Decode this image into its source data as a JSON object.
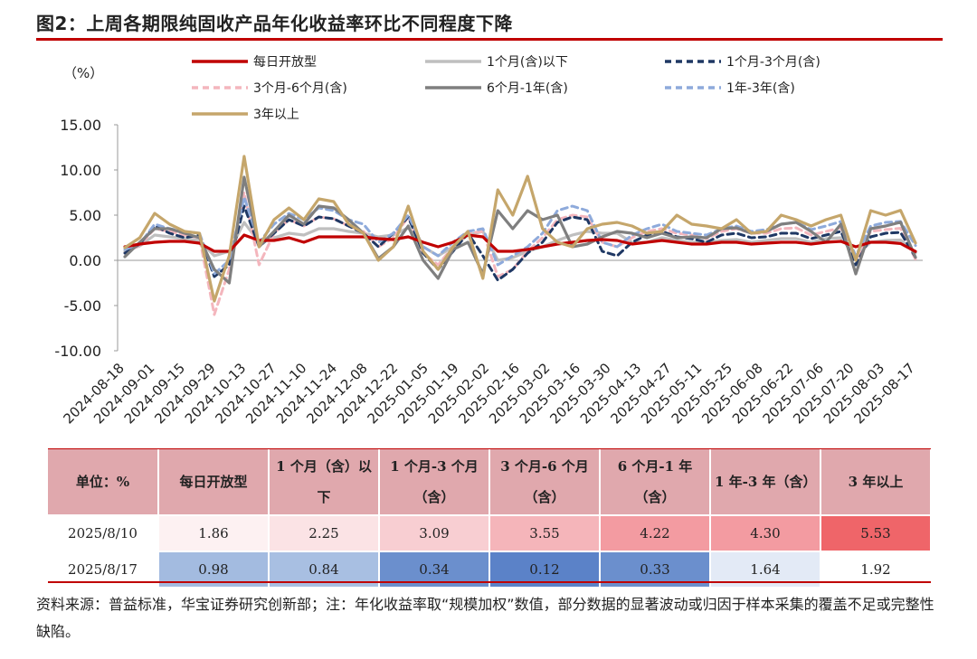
{
  "title": "图2：上周各期限纯固收产品年化收益率环比不同程度下降",
  "chart_data": {
    "type": "line",
    "ylabel": "（%）",
    "ylim": [
      -10,
      15
    ],
    "yticks": [
      "15.00",
      "10.00",
      "5.00",
      "0.00",
      "-5.00",
      "-10.00"
    ],
    "ytick_values": [
      15,
      10,
      5,
      0,
      -5,
      -10
    ],
    "xtick_labels": [
      "2024-08-18",
      "2024-09-01",
      "2024-09-15",
      "2024-09-29",
      "2024-10-13",
      "2024-10-27",
      "2024-11-10",
      "2024-11-24",
      "2024-12-08",
      "2024-12-22",
      "2025-01-05",
      "2025-01-19",
      "2025-02-02",
      "2025-02-16",
      "2025-03-02",
      "2025-03-16",
      "2025-03-30",
      "2025-04-13",
      "2025-04-27",
      "2025-05-11",
      "2025-05-25",
      "2025-06-08",
      "2025-06-22",
      "2025-07-06",
      "2025-07-20",
      "2025-08-03",
      "2025-08-17"
    ],
    "legend_position": "top",
    "series": [
      {
        "name": "每日开放型",
        "color": "#c00000",
        "dash": "solid",
        "values": [
          1.5,
          1.8,
          2.0,
          2.1,
          2.1,
          1.9,
          1.0,
          1.0,
          2.8,
          2.2,
          2.2,
          2.5,
          2.0,
          2.6,
          2.6,
          2.6,
          2.6,
          2.4,
          2.3,
          2.6,
          2.0,
          1.5,
          2.0,
          2.8,
          2.6,
          1.0,
          1.0,
          1.2,
          1.5,
          1.8,
          2.0,
          2.2,
          2.3,
          2.2,
          1.8,
          2.0,
          2.2,
          2.0,
          1.8,
          1.8,
          2.0,
          2.0,
          1.8,
          1.9,
          2.0,
          2.0,
          1.8,
          2.0,
          2.1,
          1.5,
          2.0,
          2.0,
          1.86,
          0.98
        ]
      },
      {
        "name": "1个月(含)以下",
        "color": "#bfbfbf",
        "dash": "solid",
        "values": [
          1.0,
          1.6,
          2.8,
          2.6,
          2.4,
          2.2,
          0.5,
          1.0,
          4.2,
          2.0,
          2.5,
          3.0,
          2.8,
          3.5,
          3.5,
          3.2,
          3.0,
          2.6,
          2.8,
          3.6,
          1.5,
          0.5,
          1.5,
          2.8,
          3.2,
          0.0,
          0.3,
          1.0,
          1.5,
          2.2,
          2.8,
          3.2,
          3.0,
          3.0,
          2.0,
          2.0,
          2.5,
          2.2,
          2.0,
          2.0,
          2.2,
          2.3,
          2.0,
          2.2,
          2.4,
          2.4,
          2.0,
          2.4,
          2.5,
          0.5,
          2.0,
          2.2,
          2.25,
          0.84
        ]
      },
      {
        "name": "1个月-3个月(含)",
        "color": "#1f3864",
        "dash": "7,5",
        "values": [
          0.8,
          1.8,
          3.8,
          3.0,
          2.5,
          2.8,
          -1.8,
          -0.5,
          6.0,
          1.5,
          3.0,
          4.5,
          3.8,
          4.8,
          4.6,
          3.8,
          3.0,
          1.5,
          3.0,
          4.8,
          0.8,
          -1.0,
          1.0,
          3.0,
          0.5,
          -2.2,
          -1.0,
          0.8,
          2.0,
          4.2,
          4.8,
          4.5,
          1.0,
          0.5,
          2.0,
          2.8,
          3.2,
          2.6,
          2.4,
          2.0,
          2.8,
          3.0,
          2.5,
          2.6,
          3.0,
          3.0,
          2.4,
          2.8,
          3.2,
          -0.5,
          2.6,
          3.0,
          3.09,
          0.34
        ]
      },
      {
        "name": "3个月-6个月(含)",
        "color": "#f4b6bd",
        "dash": "7,5",
        "values": [
          0.8,
          1.7,
          3.5,
          3.2,
          2.8,
          2.5,
          -6.0,
          -1.0,
          7.5,
          -0.5,
          3.0,
          4.5,
          3.8,
          4.8,
          4.6,
          3.8,
          3.2,
          1.5,
          2.5,
          4.8,
          0.8,
          -0.5,
          1.5,
          3.0,
          3.2,
          -1.8,
          -1.0,
          1.0,
          2.5,
          4.5,
          5.0,
          4.8,
          2.0,
          1.5,
          2.5,
          3.2,
          3.5,
          3.0,
          2.8,
          2.4,
          3.2,
          3.5,
          3.0,
          3.0,
          3.5,
          3.6,
          2.8,
          3.2,
          3.6,
          0.0,
          3.2,
          3.4,
          3.55,
          0.12
        ]
      },
      {
        "name": "6个月-1年(含)",
        "color": "#7f7f7f",
        "dash": "solid",
        "values": [
          0.4,
          2.0,
          3.5,
          3.5,
          3.0,
          2.5,
          -1.0,
          -2.5,
          9.2,
          1.5,
          3.2,
          5.0,
          4.0,
          6.0,
          5.8,
          4.5,
          3.0,
          0.2,
          1.5,
          3.8,
          0.0,
          -2.0,
          1.2,
          2.0,
          -1.5,
          5.5,
          3.5,
          5.5,
          4.5,
          5.0,
          1.5,
          1.8,
          2.6,
          3.2,
          3.0,
          2.5,
          3.0,
          2.5,
          2.6,
          2.5,
          3.5,
          3.6,
          3.0,
          3.2,
          4.0,
          4.2,
          3.2,
          2.0,
          4.0,
          -1.5,
          3.5,
          3.8,
          4.22,
          0.33
        ]
      },
      {
        "name": "1年-3年(含)",
        "color": "#8eaadb",
        "dash": "7,5",
        "values": [
          1.2,
          1.8,
          4.0,
          3.5,
          3.2,
          3.0,
          -1.5,
          0.0,
          7.0,
          2.0,
          4.0,
          5.2,
          4.5,
          5.8,
          5.5,
          4.5,
          4.0,
          2.0,
          3.0,
          5.0,
          1.5,
          0.5,
          2.0,
          3.2,
          3.5,
          -0.5,
          0.5,
          1.5,
          3.0,
          5.5,
          6.0,
          5.5,
          2.0,
          1.5,
          2.8,
          3.5,
          4.0,
          3.2,
          3.0,
          2.8,
          3.5,
          3.8,
          3.2,
          3.4,
          4.0,
          4.2,
          3.4,
          3.8,
          4.3,
          0.5,
          3.8,
          4.2,
          4.3,
          1.64
        ]
      },
      {
        "name": "3年以上",
        "color": "#c5a66b",
        "dash": "solid",
        "values": [
          1.4,
          2.5,
          5.2,
          4.0,
          3.2,
          3.0,
          -4.5,
          0.5,
          11.5,
          1.5,
          4.5,
          5.8,
          4.5,
          6.8,
          6.5,
          4.0,
          3.0,
          0.0,
          1.5,
          6.0,
          1.0,
          -1.0,
          1.5,
          3.2,
          -2.0,
          7.8,
          5.0,
          9.3,
          3.5,
          2.0,
          1.5,
          3.5,
          4.0,
          4.2,
          3.8,
          3.0,
          3.2,
          5.0,
          4.0,
          3.8,
          3.5,
          4.5,
          3.0,
          3.2,
          5.0,
          4.5,
          3.8,
          4.5,
          5.0,
          0.0,
          5.5,
          5.0,
          5.53,
          1.92
        ]
      }
    ]
  },
  "table": {
    "header": [
      "单位：%",
      "每日开放型",
      "1 个月（含）以下",
      "1 个月-3 个月（含）",
      "3 个月-6 个月（含）",
      "6 个月-1 年（含）",
      "1 年-3 年（含）",
      "3 年以上"
    ],
    "rows": [
      {
        "label": "2025/8/10",
        "values": [
          "1.86",
          "2.25",
          "3.09",
          "3.55",
          "4.22",
          "4.30",
          "5.53"
        ],
        "colors": [
          "#fdf1f2",
          "#fbe3e5",
          "#f8ced2",
          "#f5b5ba",
          "#f39ba1",
          "#f39ba1",
          "#ef6569"
        ]
      },
      {
        "label": "2025/8/17",
        "values": [
          "0.98",
          "0.84",
          "0.34",
          "0.12",
          "0.33",
          "1.64",
          "1.92"
        ],
        "colors": [
          "#a3bbe0",
          "#a8bfe2",
          "#6b8fcd",
          "#5b82c8",
          "#6b8fcd",
          "#e3eaf6",
          "#ffffff"
        ]
      }
    ]
  },
  "note": "资料来源：普益标准，华宝证券研究创新部；注：年化收益率取“规模加权”数值，部分数据的显著波动或归因于样本采集的覆盖不足或完整性缺陷。"
}
